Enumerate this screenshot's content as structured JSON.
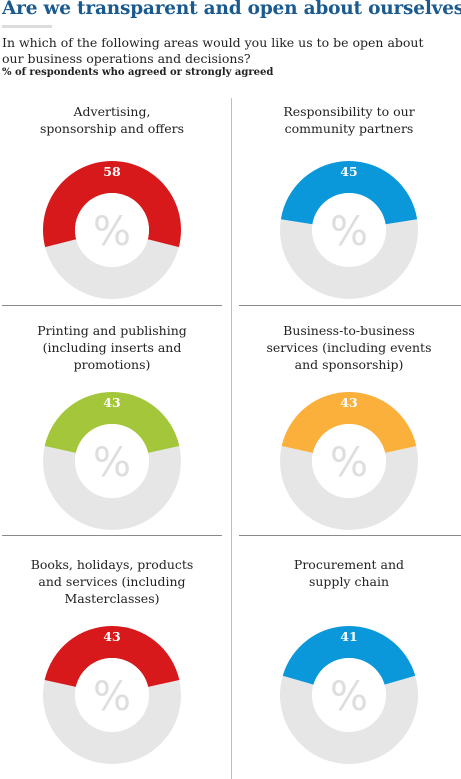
{
  "title": "Are we transparent and open about ourselves?",
  "subtitle": "In which of the following areas would you like us to be open about our business operations and decisions?",
  "note": "% of respondents who agreed or strongly agreed",
  "center_symbol": "%",
  "chart_data": [
    {
      "type": "pie",
      "subtype": "donut",
      "title_lines": [
        "Advertising,",
        "sponsorship and offers"
      ],
      "value": 58,
      "max": 100,
      "unit": "%",
      "color": "#d7191c",
      "remainder_color": "#e6e6e6"
    },
    {
      "type": "pie",
      "subtype": "donut",
      "title_lines": [
        "Responsibility to our",
        "community partners"
      ],
      "value": 45,
      "max": 100,
      "unit": "%",
      "color": "#0a98db",
      "remainder_color": "#e6e6e6"
    },
    {
      "type": "pie",
      "subtype": "donut",
      "title_lines": [
        "Printing and publishing",
        "(including inserts and",
        "promotions)"
      ],
      "value": 43,
      "max": 100,
      "unit": "%",
      "color": "#a4c63a",
      "remainder_color": "#e6e6e6"
    },
    {
      "type": "pie",
      "subtype": "donut",
      "title_lines": [
        "Business-to-business",
        "services (including events",
        "and sponsorship)"
      ],
      "value": 43,
      "max": 100,
      "unit": "%",
      "color": "#fbb03b",
      "remainder_color": "#e6e6e6"
    },
    {
      "type": "pie",
      "subtype": "donut",
      "title_lines": [
        "Books, holidays, products",
        "and services (including",
        "Masterclasses)"
      ],
      "value": 43,
      "max": 100,
      "unit": "%",
      "color": "#d7191c",
      "remainder_color": "#e6e6e6"
    },
    {
      "type": "pie",
      "subtype": "donut",
      "title_lines": [
        "Procurement and",
        "supply chain"
      ],
      "value": 41,
      "max": 100,
      "unit": "%",
      "color": "#0a98db",
      "remainder_color": "#e6e6e6"
    }
  ]
}
